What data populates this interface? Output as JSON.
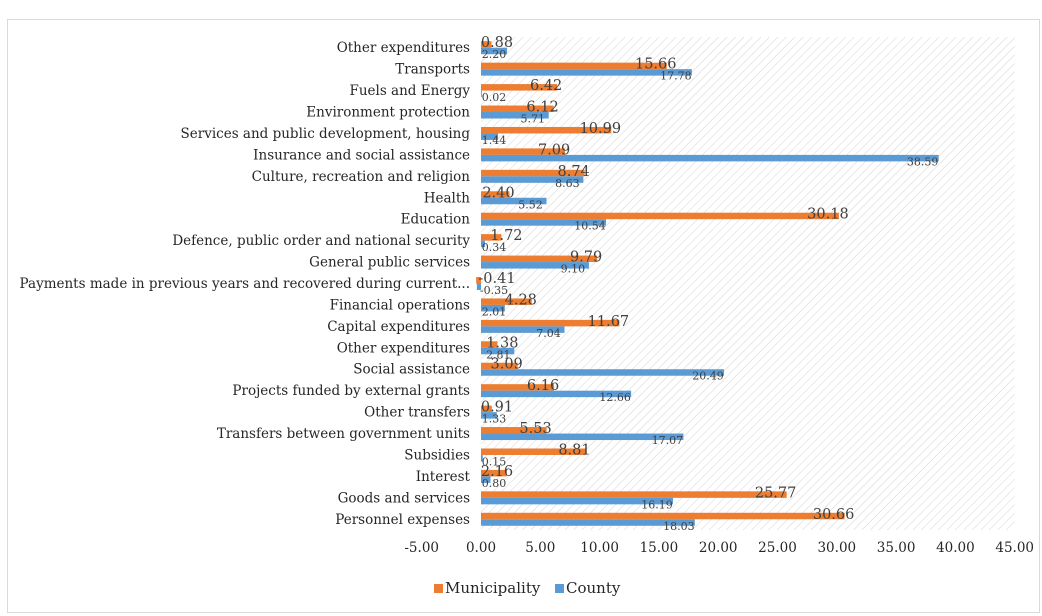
{
  "chart_data": {
    "type": "bar",
    "orientation": "horizontal",
    "title": "",
    "xlabel": "",
    "ylabel": "",
    "xlim": [
      -5,
      45
    ],
    "xticks": [
      -5,
      0,
      5,
      10,
      15,
      20,
      25,
      30,
      35,
      40,
      45
    ],
    "xtick_labels": [
      "-5.00",
      "0.00",
      "5.00",
      "10.00",
      "15.00",
      "20.00",
      "25.00",
      "30.00",
      "35.00",
      "40.00",
      "45.00"
    ],
    "grid": false,
    "legend_position": "bottom",
    "categories": [
      "Other expenditures",
      "Transports",
      "Fuels and Energy",
      "Environment protection",
      "Services and public development, housing",
      "Insurance and social assistance",
      "Culture, recreation and religion",
      "Health",
      "Education",
      "Defence, public order and national security",
      "General public services",
      "Payments made in previous years and recovered during current...",
      "Financial operations",
      "Capital expenditures",
      "Other expenditures",
      "Social assistance",
      "Projects funded by external grants",
      "Other transfers",
      "Transfers between government units",
      "Subsidies",
      "Interest",
      "Goods and services",
      "Personnel expenses"
    ],
    "series": [
      {
        "name": "Municipality",
        "color": "#ED7D31",
        "values": [
          0.88,
          15.66,
          6.42,
          6.12,
          10.99,
          7.09,
          8.74,
          2.4,
          30.18,
          1.72,
          9.79,
          -0.41,
          4.28,
          11.67,
          1.38,
          3.09,
          6.16,
          0.91,
          5.53,
          8.81,
          2.16,
          25.77,
          30.66
        ],
        "labels": [
          "0.88",
          "15.66",
          "6.42",
          "6.12",
          "10.99",
          "7.09",
          "8.74",
          "2.40",
          "30.18",
          "1.72",
          "9.79",
          "-0.41",
          "4.28",
          "11.67",
          "1.38",
          "3.09",
          "6.16",
          "0.91",
          "5.53",
          "8.81",
          "2.16",
          "25.77",
          "30.66"
        ]
      },
      {
        "name": "County",
        "color": "#5B9BD5",
        "values": [
          2.2,
          17.78,
          0.02,
          5.71,
          1.44,
          38.59,
          8.63,
          5.52,
          10.54,
          0.34,
          9.1,
          -0.35,
          2.01,
          7.04,
          2.81,
          20.49,
          12.66,
          1.33,
          17.07,
          0.15,
          0.8,
          16.19,
          18.03
        ],
        "labels": [
          "2.20",
          "17.78",
          "0.02",
          "5.71",
          "1.44",
          "38.59",
          "8.63",
          "5.52",
          "10.54",
          "0.34",
          "9.10",
          "-0.35",
          "2.01",
          "7.04",
          "2.81",
          "20.49",
          "12.66",
          "1.33",
          "17.07",
          "0.15",
          "0.80",
          "16.19",
          "18.03"
        ]
      }
    ]
  },
  "legend": {
    "items": [
      {
        "label": "Municipality",
        "color": "#ED7D31"
      },
      {
        "label": "County",
        "color": "#5B9BD5"
      }
    ]
  }
}
